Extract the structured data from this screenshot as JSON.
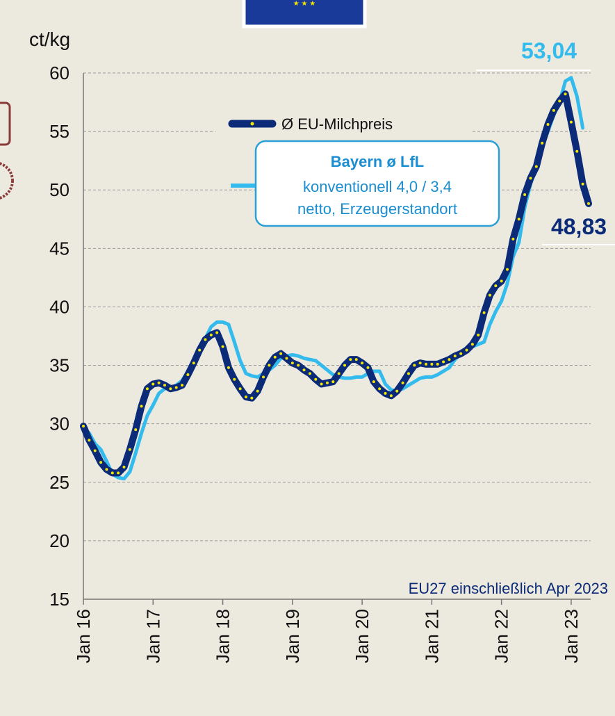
{
  "chart_data": {
    "type": "line",
    "y_label": "ct/kg",
    "note": "EU27 einschließlich Apr 2023",
    "annotations": [
      {
        "text": "53,04",
        "color": "#33bbee"
      },
      {
        "text": "48,83",
        "color": "#0b2a78"
      }
    ],
    "legend_note": [
      "konventionell 4,0 / 3,4",
      "netto, Erzeugerstandort"
    ],
    "categories": [
      "Jan 16",
      null,
      null,
      null,
      null,
      null,
      null,
      null,
      null,
      null,
      null,
      null,
      "Jan 17",
      null,
      null,
      null,
      null,
      null,
      null,
      null,
      null,
      null,
      null,
      null,
      "Jan 18",
      null,
      null,
      null,
      null,
      null,
      null,
      null,
      null,
      null,
      null,
      null,
      "Jan 19",
      null,
      null,
      null,
      null,
      null,
      null,
      null,
      null,
      null,
      null,
      null,
      "Jan 20",
      null,
      null,
      null,
      null,
      null,
      null,
      null,
      null,
      null,
      null,
      null,
      "Jan 21",
      null,
      null,
      null,
      null,
      null,
      null,
      null,
      null,
      null,
      null,
      null,
      "Jan 22",
      null,
      null,
      null,
      null,
      null,
      null,
      null,
      null,
      null,
      null,
      null,
      "Jan 23",
      null,
      null,
      null
    ],
    "series": [
      {
        "name": "Ø EU-Milchpreis",
        "color": "#0b2a78",
        "marker_color": "#f2e600",
        "values": [
          29.8,
          28.6,
          27.7,
          26.7,
          26.1,
          25.8,
          25.8,
          26.3,
          27.8,
          29.5,
          31.5,
          33.0,
          33.4,
          33.5,
          33.3,
          33.0,
          33.1,
          33.3,
          34.2,
          35.2,
          36.3,
          37.2,
          37.6,
          37.8,
          36.6,
          34.8,
          33.8,
          33.0,
          32.3,
          32.2,
          32.8,
          34.0,
          35.0,
          35.7,
          36.0,
          35.6,
          35.2,
          35.0,
          34.6,
          34.3,
          33.8,
          33.4,
          33.5,
          33.6,
          34.3,
          35.0,
          35.5,
          35.5,
          35.2,
          34.8,
          33.6,
          33.0,
          32.6,
          32.4,
          32.8,
          33.5,
          34.3,
          35.0,
          35.2,
          35.1,
          35.1,
          35.1,
          35.3,
          35.5,
          35.8,
          36.0,
          36.3,
          36.8,
          37.6,
          39.5,
          41.0,
          41.8,
          42.2,
          43.2,
          45.8,
          47.5,
          49.6,
          51.0,
          52.0,
          54.0,
          55.6,
          56.8,
          57.6,
          58.2,
          55.8,
          53.3,
          50.5,
          48.83
        ]
      },
      {
        "name": "Bayern ø LfL",
        "color": "#33bbee",
        "values": [
          29.7,
          29.2,
          28.3,
          27.8,
          26.8,
          25.7,
          25.4,
          25.3,
          25.9,
          27.5,
          29.2,
          30.7,
          31.6,
          32.6,
          33.0,
          33.1,
          33.3,
          33.7,
          34.5,
          35.5,
          36.5,
          37.3,
          38.3,
          38.7,
          38.7,
          38.5,
          37.0,
          35.4,
          34.3,
          34.1,
          34.0,
          34.3,
          34.6,
          35.0,
          35.6,
          35.8,
          35.9,
          35.8,
          35.6,
          35.5,
          35.4,
          35.0,
          34.6,
          34.2,
          34.0,
          33.9,
          33.9,
          34.0,
          34.0,
          34.3,
          34.5,
          34.5,
          33.4,
          32.9,
          32.8,
          33.0,
          33.3,
          33.6,
          33.9,
          34.0,
          34.0,
          34.2,
          34.5,
          34.8,
          35.5,
          36.0,
          36.4,
          36.6,
          36.8,
          37.0,
          38.5,
          39.6,
          40.5,
          42.0,
          44.3,
          45.5,
          48.5,
          50.5,
          52.0,
          53.7,
          55.0,
          56.4,
          57.5,
          59.3,
          59.6,
          58.0,
          55.3,
          null
        ]
      }
    ],
    "ylim": [
      15,
      60
    ],
    "yticks": [
      15,
      20,
      25,
      30,
      35,
      40,
      45,
      50,
      55,
      60
    ],
    "grid": true
  }
}
